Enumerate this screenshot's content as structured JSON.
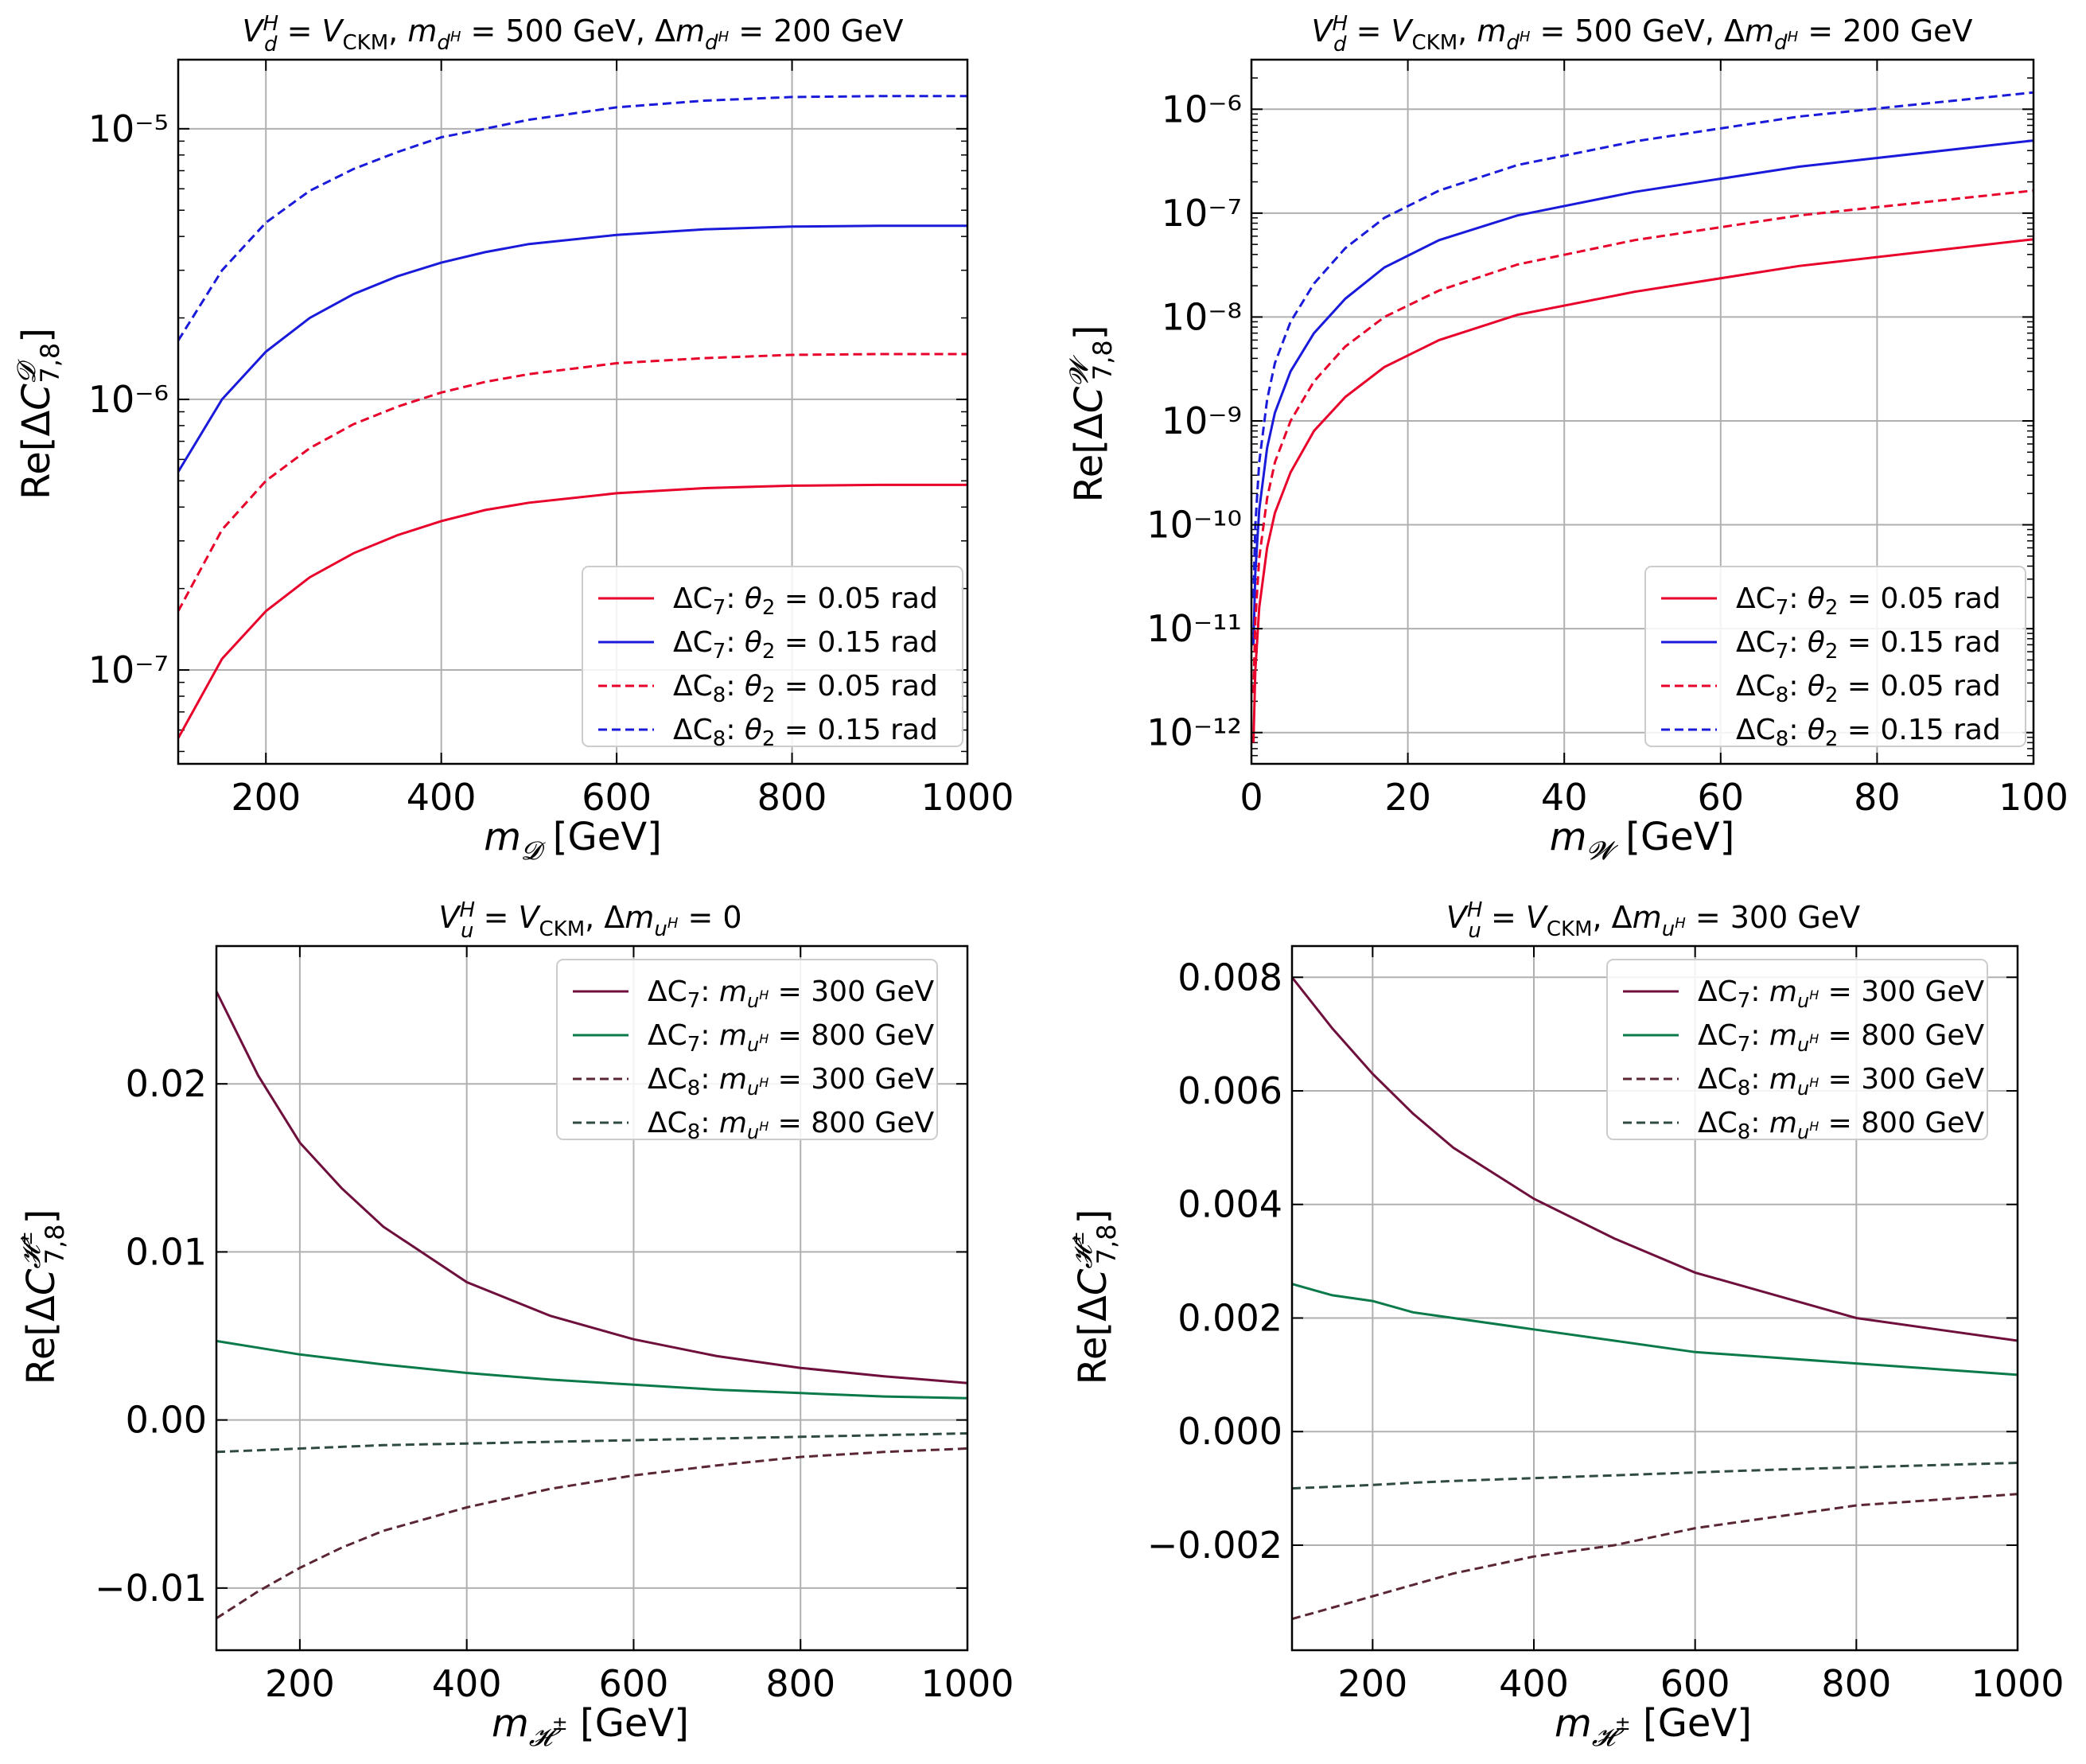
{
  "chart_data": [
    {
      "id": "p1",
      "type": "line",
      "title": "V_d^H = V_CKM, m_{d^H} = 500 GeV, Δm_{d^H} = 200 GeV",
      "xlabel": "m_D [GeV]",
      "ylabel": "Re[ΔC_{7,8}^D]",
      "yscale": "log",
      "xlim": [
        100,
        1000
      ],
      "ylim": [
        4.5e-08,
        1.8e-05
      ],
      "xticks": [
        200,
        400,
        600,
        800,
        1000
      ],
      "yticks": [
        1e-07,
        1e-06,
        1e-05
      ],
      "grid": true,
      "legend_position": "lower-right",
      "x": [
        100,
        150,
        200,
        250,
        300,
        350,
        400,
        450,
        500,
        600,
        700,
        800,
        900,
        1000
      ],
      "series": [
        {
          "name": "ΔC7: θ2 = 0.05 rad",
          "color": "#e8002b",
          "dash": "solid",
          "values": [
            5.6e-08,
            1.1e-07,
            1.65e-07,
            2.2e-07,
            2.7e-07,
            3.15e-07,
            3.55e-07,
            3.9e-07,
            4.15e-07,
            4.5e-07,
            4.7e-07,
            4.8e-07,
            4.83e-07,
            4.83e-07
          ]
        },
        {
          "name": "ΔC7: θ2 = 0.15 rad",
          "color": "#1a1adb",
          "dash": "solid",
          "values": [
            5.4e-07,
            1e-06,
            1.5e-06,
            2e-06,
            2.45e-06,
            2.85e-06,
            3.2e-06,
            3.5e-06,
            3.75e-06,
            4.05e-06,
            4.25e-06,
            4.35e-06,
            4.38e-06,
            4.38e-06
          ]
        },
        {
          "name": "ΔC8: θ2 = 0.05 rad",
          "color": "#e8002b",
          "dash": "dashed",
          "values": [
            1.65e-07,
            3.3e-07,
            5e-07,
            6.6e-07,
            8.1e-07,
            9.4e-07,
            1.06e-06,
            1.16e-06,
            1.24e-06,
            1.36e-06,
            1.42e-06,
            1.46e-06,
            1.47e-06,
            1.47e-06
          ]
        },
        {
          "name": "ΔC8: θ2 = 0.15 rad",
          "color": "#1a1adb",
          "dash": "dashed",
          "values": [
            1.65e-06,
            3e-06,
            4.5e-06,
            5.9e-06,
            7.1e-06,
            8.2e-06,
            9.3e-06,
            1e-05,
            1.08e-05,
            1.2e-05,
            1.27e-05,
            1.31e-05,
            1.32e-05,
            1.32e-05
          ]
        }
      ]
    },
    {
      "id": "p2",
      "type": "line",
      "title": "V_d^H = V_CKM, m_{d^H} = 500 GeV, Δm_{d^H} = 200 GeV",
      "xlabel": "m_W [GeV]",
      "ylabel": "Re[ΔC_{7,8}^W]",
      "yscale": "log",
      "xlim": [
        0,
        100
      ],
      "ylim": [
        5e-13,
        3e-06
      ],
      "xticks": [
        0,
        20,
        40,
        60,
        80,
        100
      ],
      "yticks": [
        1e-12,
        1e-11,
        1e-10,
        1e-09,
        1e-08,
        1e-07,
        1e-06
      ],
      "grid": true,
      "legend_position": "lower-right",
      "x": [
        0.25,
        0.5,
        1,
        2,
        3,
        5,
        8,
        12,
        17,
        24,
        34,
        49,
        70,
        100
      ],
      "series": [
        {
          "name": "ΔC7: θ2 = 0.05 rad",
          "color": "#e8002b",
          "dash": "solid",
          "values": [
            8e-13,
            4e-12,
            1.6e-11,
            6e-11,
            1.3e-10,
            3.2e-10,
            8e-10,
            1.7e-09,
            3.3e-09,
            6e-09,
            1.05e-08,
            1.75e-08,
            3.1e-08,
            5.6e-08
          ]
        },
        {
          "name": "ΔC7: θ2 = 0.15 rad",
          "color": "#1a1adb",
          "dash": "solid",
          "values": [
            7e-12,
            3.5e-11,
            1.4e-10,
            5.5e-10,
            1.2e-09,
            3e-09,
            7e-09,
            1.5e-08,
            3e-08,
            5.5e-08,
            9.5e-08,
            1.6e-07,
            2.8e-07,
            5e-07
          ]
        },
        {
          "name": "ΔC8: θ2 = 0.05 rad",
          "color": "#e8002b",
          "dash": "dashed",
          "values": [
            2.4e-12,
            1.2e-11,
            4.8e-11,
            1.8e-10,
            4e-10,
            1e-09,
            2.4e-09,
            5.2e-09,
            1e-08,
            1.8e-08,
            3.2e-08,
            5.5e-08,
            9.5e-08,
            1.65e-07
          ]
        },
        {
          "name": "ΔC8: θ2 = 0.15 rad",
          "color": "#1a1adb",
          "dash": "dashed",
          "values": [
            2e-11,
            1e-10,
            4e-10,
            1.6e-09,
            3.6e-09,
            9e-09,
            2.1e-08,
            4.6e-08,
            9e-08,
            1.65e-07,
            2.9e-07,
            4.9e-07,
            8.5e-07,
            1.45e-06
          ]
        }
      ]
    },
    {
      "id": "p3",
      "type": "line",
      "title": "V_u^H = V_CKM, Δm_{u^H} = 0",
      "xlabel": "m_H± [GeV]",
      "ylabel": "Re[ΔC_{7,8}^{H±}]",
      "yscale": "linear",
      "xlim": [
        100,
        1000
      ],
      "ylim": [
        -0.0137,
        0.0282
      ],
      "xticks": [
        200,
        400,
        600,
        800,
        1000
      ],
      "yticks": [
        -0.01,
        0.0,
        0.01,
        0.02
      ],
      "ytick_labels": [
        "−0.01",
        "0.00",
        "0.01",
        "0.02"
      ],
      "grid": true,
      "legend_position": "top-right",
      "x": [
        100,
        150,
        200,
        250,
        300,
        400,
        500,
        600,
        700,
        800,
        900,
        1000
      ],
      "series": [
        {
          "name": "ΔC7: m_{u^H} = 300 GeV",
          "color": "#6e0f3c",
          "dash": "solid",
          "values": [
            0.0255,
            0.0205,
            0.0165,
            0.0138,
            0.0115,
            0.0082,
            0.0062,
            0.0048,
            0.0038,
            0.0031,
            0.0026,
            0.0022
          ]
        },
        {
          "name": "ΔC7: m_{u^H} = 800 GeV",
          "color": "#0b7a4a",
          "dash": "solid",
          "values": [
            0.0047,
            0.0043,
            0.0039,
            0.0036,
            0.0033,
            0.0028,
            0.0024,
            0.0021,
            0.0018,
            0.0016,
            0.0014,
            0.0013
          ]
        },
        {
          "name": "ΔC8: m_{u^H} = 300 GeV",
          "color": "#5a2633",
          "dash": "dashed",
          "values": [
            -0.0118,
            -0.0102,
            -0.0088,
            -0.0076,
            -0.0066,
            -0.0052,
            -0.0041,
            -0.0033,
            -0.0027,
            -0.0022,
            -0.0019,
            -0.0017
          ]
        },
        {
          "name": "ΔC8: m_{u^H} = 800 GeV",
          "color": "#2f4a40",
          "dash": "dashed",
          "values": [
            -0.0019,
            -0.0018,
            -0.0017,
            -0.0016,
            -0.0015,
            -0.0014,
            -0.0013,
            -0.0012,
            -0.0011,
            -0.001,
            -0.0009,
            -0.0008
          ]
        }
      ]
    },
    {
      "id": "p4",
      "type": "line",
      "title": "V_u^H = V_CKM, Δm_{u^H} = 300 GeV",
      "xlabel": "m_H± [GeV]",
      "ylabel": "Re[ΔC_{7,8}^{H±}]",
      "yscale": "linear",
      "xlim": [
        100,
        1000
      ],
      "ylim": [
        -0.00385,
        0.00855
      ],
      "xticks": [
        200,
        400,
        600,
        800,
        1000
      ],
      "yticks": [
        -0.002,
        0.0,
        0.002,
        0.004,
        0.006,
        0.008
      ],
      "ytick_labels": [
        "−0.002",
        "0.000",
        "0.002",
        "0.004",
        "0.006",
        "0.008"
      ],
      "grid": true,
      "legend_position": "top-right",
      "x": [
        100,
        150,
        200,
        250,
        300,
        400,
        500,
        600,
        700,
        800,
        900,
        1000
      ],
      "series": [
        {
          "name": "ΔC7: m_{u^H} = 300 GeV",
          "color": "#6e0f3c",
          "dash": "solid",
          "values": [
            0.008,
            0.0071,
            0.0063,
            0.0056,
            0.005,
            0.0041,
            0.0034,
            0.0028,
            0.0024,
            0.002,
            0.0018,
            0.0016
          ]
        },
        {
          "name": "ΔC7: m_{u^H} = 800 GeV",
          "color": "#0b7a4a",
          "dash": "solid",
          "values": [
            0.0026,
            0.0024,
            0.0023,
            0.0021,
            0.002,
            0.0018,
            0.0016,
            0.0014,
            0.0013,
            0.0012,
            0.0011,
            0.001
          ]
        },
        {
          "name": "ΔC8: m_{u^H} = 300 GeV",
          "color": "#5a2633",
          "dash": "dashed",
          "values": [
            -0.0033,
            -0.0031,
            -0.0029,
            -0.0027,
            -0.0025,
            -0.0022,
            -0.002,
            -0.0017,
            -0.0015,
            -0.0013,
            -0.0012,
            -0.0011
          ]
        },
        {
          "name": "ΔC8: m_{u^H} = 800 GeV",
          "color": "#2f4a40",
          "dash": "dashed",
          "values": [
            -0.001,
            -0.00097,
            -0.00094,
            -0.0009,
            -0.00087,
            -0.00082,
            -0.00077,
            -0.00072,
            -0.00067,
            -0.00063,
            -0.00059,
            -0.00055
          ]
        }
      ]
    }
  ]
}
